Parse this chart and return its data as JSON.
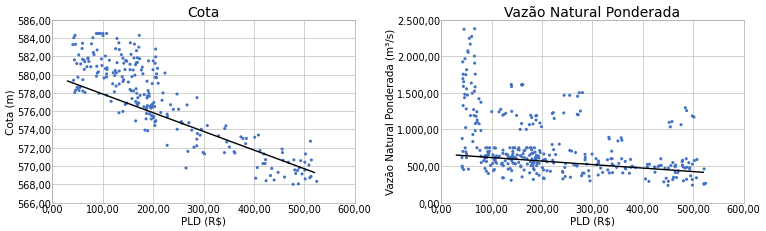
{
  "chart1": {
    "title": "Cota",
    "xlabel": "PLD (R$)",
    "ylabel": "Cota (m)",
    "xlim": [
      0,
      600
    ],
    "ylim": [
      566,
      586
    ],
    "xticks": [
      0,
      100,
      200,
      300,
      400,
      500,
      600
    ],
    "yticks": [
      566,
      568,
      570,
      572,
      574,
      576,
      578,
      580,
      582,
      584,
      586
    ],
    "xtick_labels": [
      "0,00",
      "100,00",
      "200,00",
      "300,00",
      "400,00",
      "500,00",
      "600,00"
    ],
    "ytick_labels": [
      "566,00",
      "568,00",
      "570,00",
      "572,00",
      "574,00",
      "576,00",
      "578,00",
      "580,00",
      "582,00",
      "584,00",
      "586,00"
    ],
    "trend_x": [
      30,
      520
    ],
    "trend_y": [
      579.3,
      569.3
    ],
    "dot_color": "#4472C4",
    "line_color": "black"
  },
  "chart2": {
    "title": "Vazão Natural Ponderada",
    "xlabel": "PLD (R$)",
    "ylabel": "Vazão Natural Ponderada (m³/s)",
    "xlim": [
      0,
      600
    ],
    "ylim": [
      0,
      2500
    ],
    "xticks": [
      0,
      100,
      200,
      300,
      400,
      500,
      600
    ],
    "yticks": [
      0,
      500,
      1000,
      1500,
      2000,
      2500
    ],
    "xtick_labels": [
      "0,00",
      "100,00",
      "200,00",
      "300,00",
      "400,00",
      "500,00",
      "600,00"
    ],
    "ytick_labels": [
      "0,00",
      "500,00",
      "1.000,00",
      "1.500,00",
      "2.000,00",
      "2.500,00"
    ],
    "trend_x": [
      30,
      520
    ],
    "trend_y": [
      650,
      415
    ],
    "dot_color": "#4472C4",
    "line_color": "black"
  },
  "background_color": "#ffffff",
  "grid_color": "#bfbfbf",
  "title_fontsize": 10,
  "label_fontsize": 7.5,
  "tick_fontsize": 7
}
